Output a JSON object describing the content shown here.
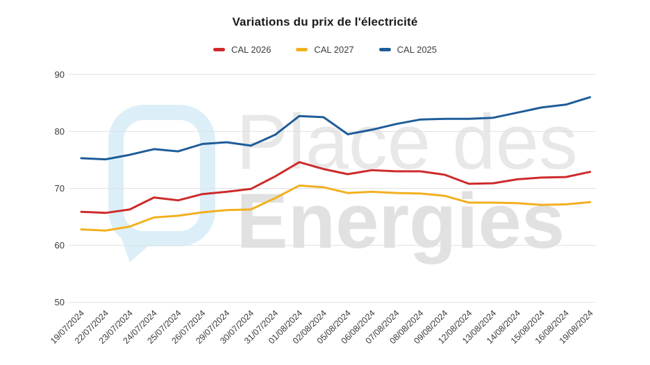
{
  "title": "Variations du prix de l'électricité",
  "watermark": {
    "line1": "Place des",
    "line2": "Energies"
  },
  "axes": {
    "y_tick_labels": [
      "50",
      "60",
      "70",
      "80",
      "90"
    ]
  },
  "chart_data": {
    "type": "line",
    "title": "Variations du prix de l'électricité",
    "x": [
      "19/07/2024",
      "22/07/2024",
      "23/07/2024",
      "24/07/2024",
      "25/07/2024",
      "26/07/2024",
      "29/07/2024",
      "30/07/2024",
      "31/07/2024",
      "01/08/2024",
      "02/08/2024",
      "05/08/2024",
      "06/08/2024",
      "07/08/2024",
      "08/08/2024",
      "09/08/2024",
      "12/08/2024",
      "13/08/2024",
      "14/08/2024",
      "15/08/2024",
      "16/08/2024",
      "19/08/2024"
    ],
    "series": [
      {
        "name": "CAL 2026",
        "color": "#CE2A2A",
        "values": [
          65.9,
          65.7,
          66.3,
          68.4,
          67.9,
          69.0,
          69.4,
          69.9,
          72.1,
          74.6,
          73.4,
          72.5,
          73.2,
          73.0,
          73.0,
          72.4,
          70.8,
          70.9,
          71.6,
          71.9,
          72.0,
          72.9
        ]
      },
      {
        "name": "CAL 2027",
        "color": "#F2B01E",
        "values": [
          62.8,
          62.6,
          63.3,
          64.9,
          65.2,
          65.8,
          66.2,
          66.3,
          68.3,
          70.5,
          70.2,
          69.2,
          69.4,
          69.2,
          69.1,
          68.7,
          67.5,
          67.5,
          67.4,
          67.1,
          67.2,
          67.6
        ]
      },
      {
        "name": "CAL 2025",
        "color": "#1E5C99",
        "values": [
          75.3,
          75.1,
          75.9,
          76.9,
          76.5,
          77.8,
          78.1,
          77.5,
          79.4,
          82.7,
          82.5,
          79.5,
          80.3,
          81.3,
          82.1,
          82.2,
          82.2,
          82.4,
          83.3,
          84.2,
          84.7,
          86.0
        ]
      }
    ],
    "ylim": [
      50,
      90
    ],
    "yticks": [
      50,
      60,
      70,
      80,
      90
    ],
    "grid": true,
    "legend_position": "top",
    "colors": {
      "gridline": "#E0E0E0",
      "tick_text": "#3A3A3A",
      "watermark_text": "#E8E8E8",
      "watermark_text2": "#E1E1E1",
      "watermark_logo": "#DCEFF8"
    }
  }
}
